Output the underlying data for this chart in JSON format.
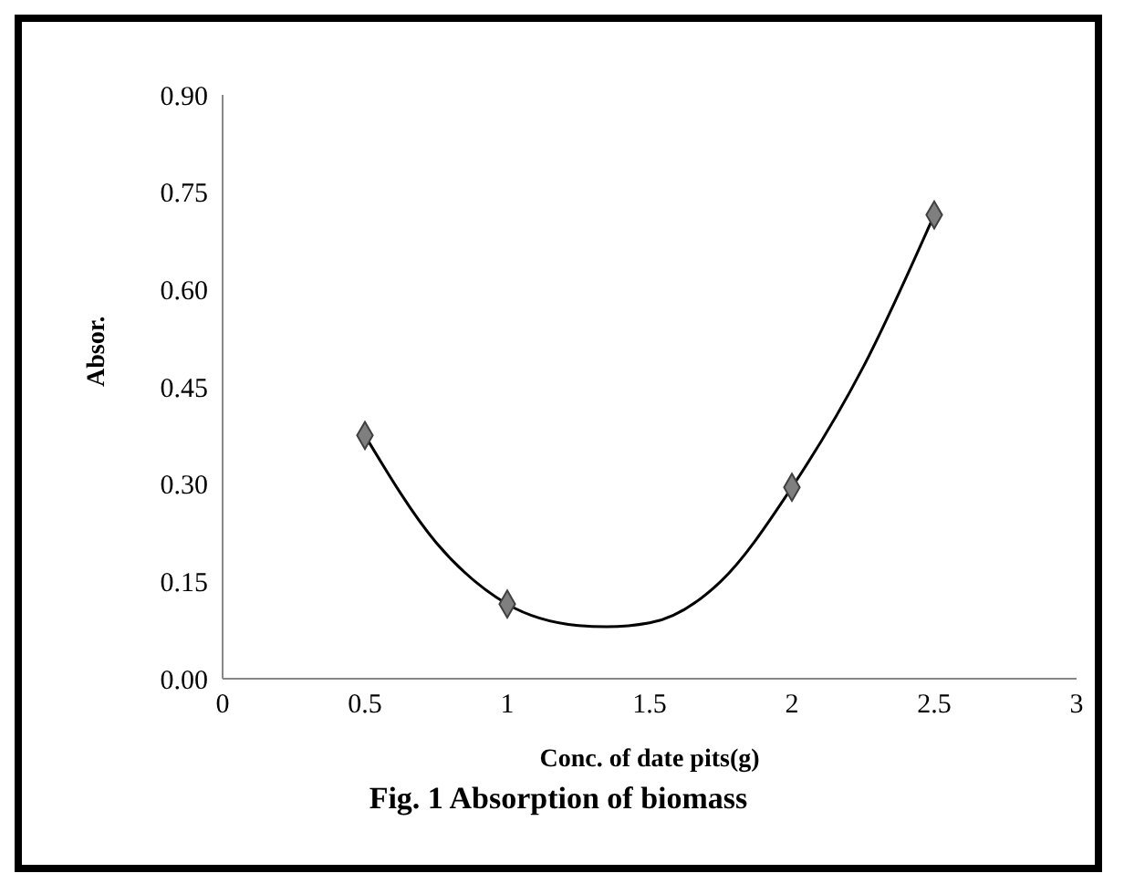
{
  "chart_data": {
    "type": "scatter",
    "title": "Fig. 1 Absorption of biomass",
    "xlabel": "Conc. of date pits(g)",
    "ylabel": "Absor.",
    "marker": "diamond",
    "grid": false,
    "series": [
      {
        "color": "#7f7f7f",
        "x": [
          0.5,
          1,
          2,
          2.5
        ],
        "values": [
          0.375,
          0.115,
          0.295,
          0.715
        ]
      },
      {
        "type": "line",
        "color": "#000000",
        "marker": "none",
        "x": [
          0.5,
          0.75,
          1,
          1.25,
          1.35,
          1.5,
          1.75,
          2,
          2.25,
          2.5
        ],
        "values": [
          0.375,
          0.21,
          0.115,
          0.082,
          0.08,
          0.086,
          0.15,
          0.295,
          0.48,
          0.715
        ]
      }
    ],
    "xlim": [
      0,
      3
    ],
    "xticks": [
      0,
      0.5,
      1,
      1.5,
      2,
      2.5,
      3
    ],
    "ylim": [
      0,
      0.9
    ],
    "yticks": [
      {
        "value": 0,
        "label": "0.00"
      },
      {
        "value": 0.15,
        "label": "0.15"
      },
      {
        "value": 0.3,
        "label": "0.30"
      },
      {
        "value": 0.45,
        "label": "0.45"
      },
      {
        "value": 0.6,
        "label": "0.60"
      },
      {
        "value": 0.75,
        "label": "0.75"
      },
      {
        "value": 0.9,
        "label": "0.90"
      }
    ]
  }
}
